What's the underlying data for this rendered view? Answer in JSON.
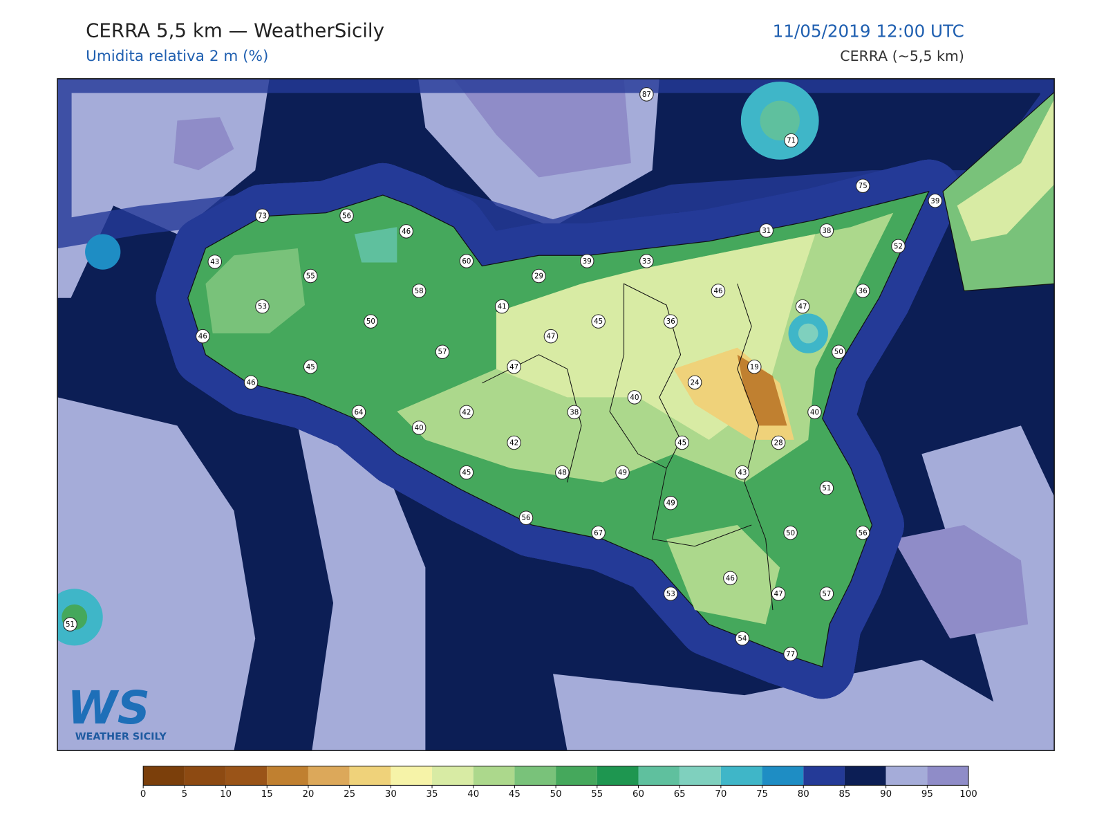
{
  "header": {
    "title": "CERRA 5,5 km — WeatherSicily",
    "subtitle": "Umidita relativa 2 m (%)",
    "date": "11/05/2019 12:00 UTC",
    "model": "CERRA (~5,5 km)"
  },
  "stations": [
    87,
    71,
    75,
    39,
    73,
    56,
    46,
    31,
    38,
    52,
    43,
    60,
    39,
    33,
    55,
    29,
    58,
    46,
    36,
    53,
    41,
    47,
    50,
    45,
    36,
    46,
    47,
    57,
    50,
    45,
    47,
    19,
    46,
    24,
    40,
    64,
    42,
    38,
    40,
    40,
    42,
    45,
    28,
    45,
    48,
    49,
    43,
    51,
    49,
    56,
    67,
    50,
    56,
    46,
    53,
    47,
    57,
    51,
    54,
    77
  ],
  "colorbar": {
    "ticks": [
      0,
      5,
      10,
      15,
      20,
      25,
      30,
      35,
      40,
      45,
      50,
      55,
      60,
      65,
      70,
      75,
      80,
      85,
      90,
      95,
      100
    ],
    "colors": [
      "#7b3f0b",
      "#8d4a12",
      "#9a5418",
      "#c08030",
      "#dca85a",
      "#efd27a",
      "#f6f3a8",
      "#d8eba4",
      "#acd88c",
      "#79c27a",
      "#45a85c",
      "#1e9650",
      "#5fc09e",
      "#7fd0be",
      "#3fb6c8",
      "#1e8dc4",
      "#243a97",
      "#0c1e55",
      "#a5acd9",
      "#8f8cc8"
    ]
  },
  "logo": {
    "mark": "WS",
    "name": "WEATHER SICILY"
  }
}
